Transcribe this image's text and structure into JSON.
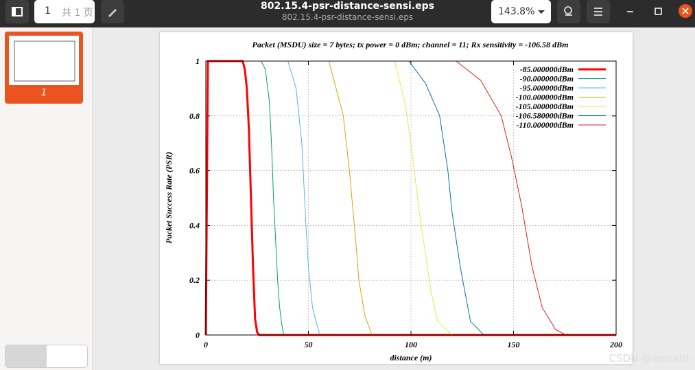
{
  "toolbar": {
    "page_number": "1",
    "page_total": "共 1 页",
    "file_title": "802.15.4-psr-distance-sensi.eps",
    "file_subtitle": "802.15.4-psr-distance-sensi.eps",
    "zoom": "143.8%"
  },
  "sidebar": {
    "thumbnail_label": "1"
  },
  "watermark": "CSDN @wenxin-",
  "chart_data": {
    "type": "line",
    "title": "Packet (MSDU) size = 7 bytes; tx power = 0 dBm; channel = 11; Rx sensitivity = -106.58 dBm",
    "x_label": "distance (m)",
    "y_label": "Packet Success Rate (PSR)",
    "xlim": [
      0,
      200
    ],
    "ylim": [
      0,
      1
    ],
    "xticks": [
      0,
      50,
      100,
      150,
      200
    ],
    "yticks": [
      0,
      0.2,
      0.4,
      0.6,
      0.8,
      1
    ],
    "grid": true,
    "legend": "upper right",
    "series": [
      {
        "name": "-85.000000dBm",
        "color": "#ff0000",
        "x": [
          0,
          1,
          18,
          19,
          20,
          21,
          22,
          23,
          24,
          25,
          26,
          200
        ],
        "values": [
          0,
          1,
          1,
          0.97,
          0.9,
          0.75,
          0.5,
          0.25,
          0.06,
          0.01,
          0,
          0
        ]
      },
      {
        "name": "-90.000000dBm",
        "color": "#009e73",
        "x": [
          0,
          27,
          29,
          31,
          32,
          33,
          34,
          35,
          36,
          37,
          38,
          200
        ],
        "values": [
          1,
          1,
          0.97,
          0.85,
          0.7,
          0.5,
          0.35,
          0.2,
          0.1,
          0.04,
          0,
          0
        ]
      },
      {
        "name": "-95.000000dBm",
        "color": "#56b4e9",
        "x": [
          0,
          40,
          44,
          46.8,
          48.8,
          50,
          52,
          55.5,
          200
        ],
        "values": [
          1,
          1,
          0.9,
          0.7,
          0.4,
          0.25,
          0.1,
          0,
          0
        ]
      },
      {
        "name": "-100.000000dBm",
        "color": "#e69f00",
        "x": [
          0,
          60,
          67,
          70,
          73,
          74.6,
          77.6,
          81,
          200
        ],
        "values": [
          1,
          1,
          0.8,
          0.6,
          0.35,
          0.2,
          0.07,
          0,
          0
        ]
      },
      {
        "name": "-105.000000dBm",
        "color": "#f0e442",
        "x": [
          0,
          92,
          97,
          100,
          104,
          107,
          110,
          113,
          120,
          200
        ],
        "values": [
          1,
          1,
          0.85,
          0.7,
          0.45,
          0.3,
          0.15,
          0.05,
          0,
          0
        ]
      },
      {
        "name": "-106.580000dBm",
        "color": "#0072b2",
        "x": [
          0,
          99,
          107,
          114,
          118,
          120,
          124,
          129,
          135.5,
          200
        ],
        "values": [
          1,
          1,
          0.92,
          0.8,
          0.6,
          0.45,
          0.25,
          0.05,
          0,
          0
        ]
      },
      {
        "name": "-110.000000dBm",
        "color": "#e51e10",
        "x": [
          0,
          122,
          134,
          144,
          149,
          154,
          159,
          164,
          170.5,
          175.5,
          200
        ],
        "values": [
          1,
          1,
          0.93,
          0.8,
          0.65,
          0.47,
          0.25,
          0.1,
          0.02,
          0,
          0
        ]
      }
    ]
  }
}
